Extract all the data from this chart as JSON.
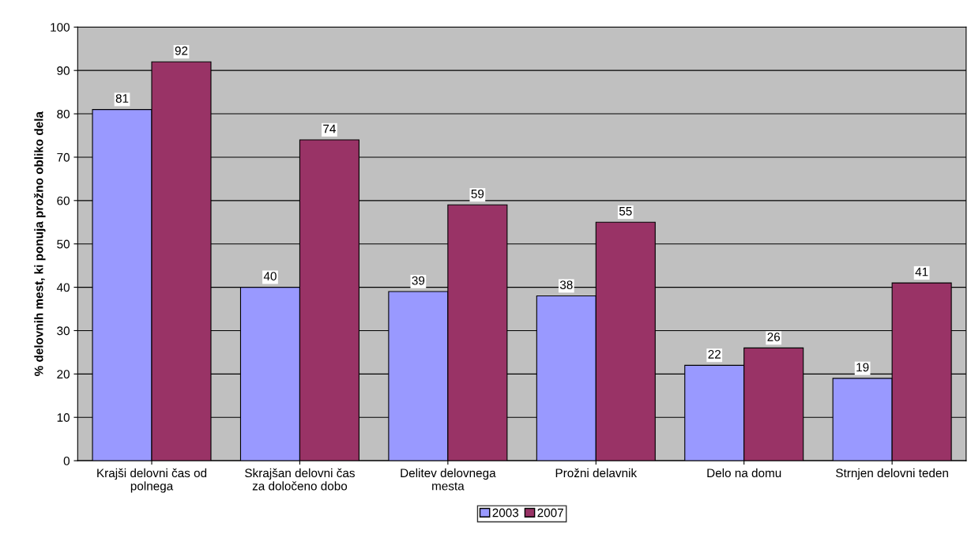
{
  "chart_data": {
    "type": "bar",
    "ylabel": "% delovnih mest, ki ponuja prožno obliko dela",
    "categories": [
      "Krajši delovni čas od\npolnega",
      "Skrajšan delovni čas\nza določeno dobo",
      "Delitev delovnega\nmesta",
      "Prožni delavnik",
      "Delo na domu",
      "Strnjen delovni teden"
    ],
    "series": [
      {
        "name": "2003",
        "color": "#9999ff",
        "values": [
          81,
          40,
          39,
          38,
          22,
          19
        ]
      },
      {
        "name": "2007",
        "color": "#993366",
        "values": [
          92,
          74,
          59,
          55,
          26,
          41
        ]
      }
    ],
    "ylim": [
      0,
      100
    ],
    "yticks": [
      0,
      10,
      20,
      30,
      40,
      50,
      60,
      70,
      80,
      90,
      100
    ],
    "grid": "y",
    "legend": "bottom",
    "data_labels": true
  }
}
